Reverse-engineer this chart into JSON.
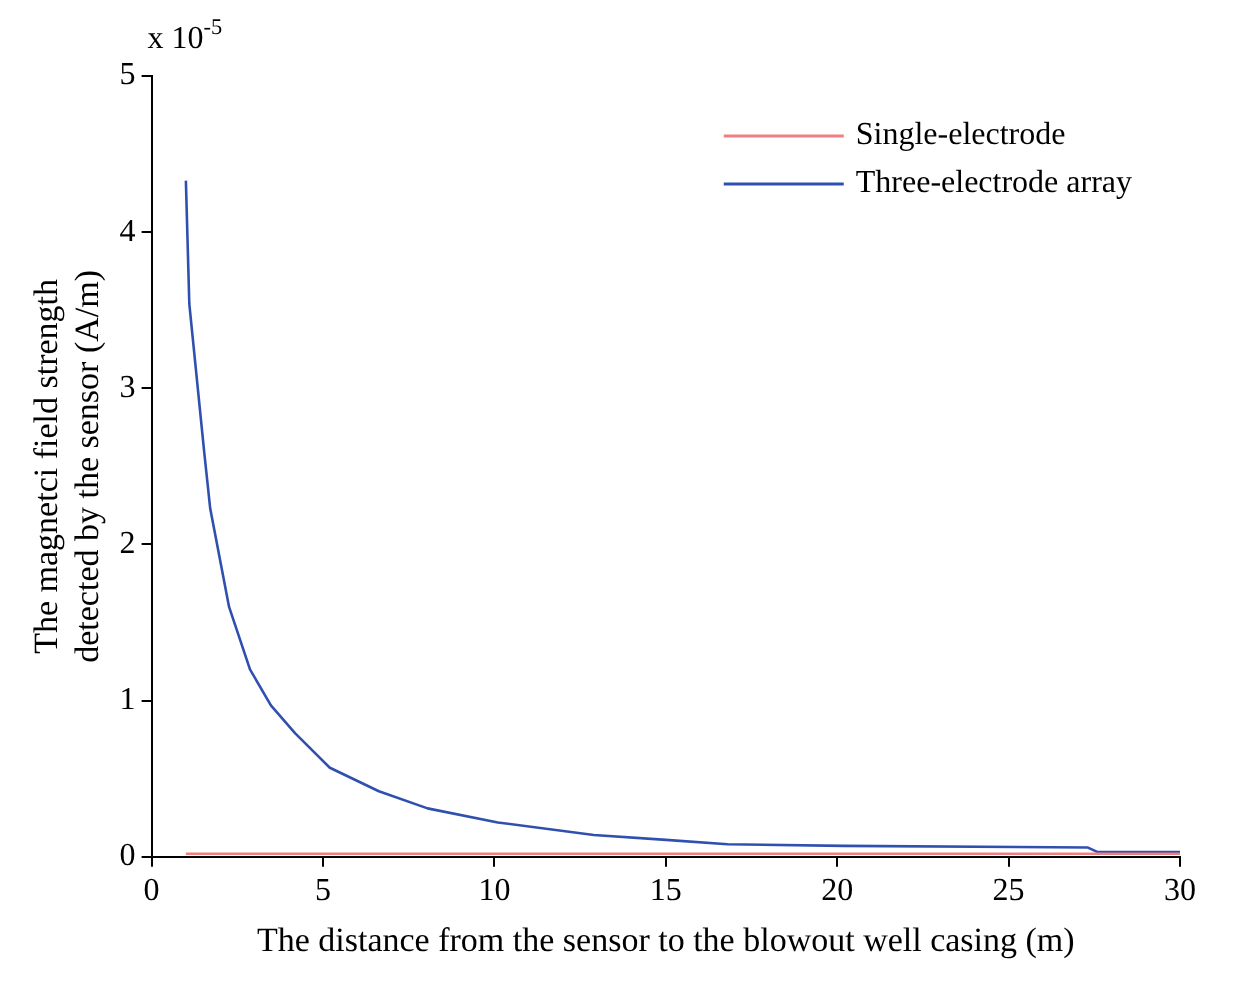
{
  "chart_data": {
    "type": "line",
    "xlabel": "The distance from the sensor to the blowout well casing (m)",
    "ylabel": "The magnetci field strength detected by the sensor (A/m)",
    "annotations": [
      "x 10$^{-5}$"
    ],
    "xlim": [
      0,
      30
    ],
    "xticks": [
      0,
      5,
      10,
      15,
      20,
      25,
      30
    ],
    "ylim": [
      0,
      5
    ],
    "yticks": [
      0,
      1,
      2,
      3,
      4,
      5
    ],
    "grid": false,
    "legend": "top right",
    "marker": "none",
    "line_style": "solid",
    "series": [
      {
        "name": "Single-electrode",
        "color": "#f08080",
        "x": [
          1,
          30
        ],
        "values": [
          0.02,
          0.02
        ]
      },
      {
        "name": "Three-electrode array",
        "color": "#3050b0",
        "x": [
          1,
          1.1,
          1.54,
          1.71,
          2.26,
          2.87,
          3.48,
          4.19,
          5.2,
          6.63,
          8.05,
          10.1,
          12.9,
          14.9,
          16.8,
          20.2,
          27.3,
          27.6,
          30
        ],
        "values": [
          4.33,
          3.54,
          2.58,
          2.23,
          1.6,
          1.2,
          0.97,
          0.79,
          0.57,
          0.42,
          0.31,
          0.22,
          0.14,
          0.11,
          0.08,
          0.07,
          0.06,
          0.03,
          0.03
        ]
      }
    ]
  }
}
